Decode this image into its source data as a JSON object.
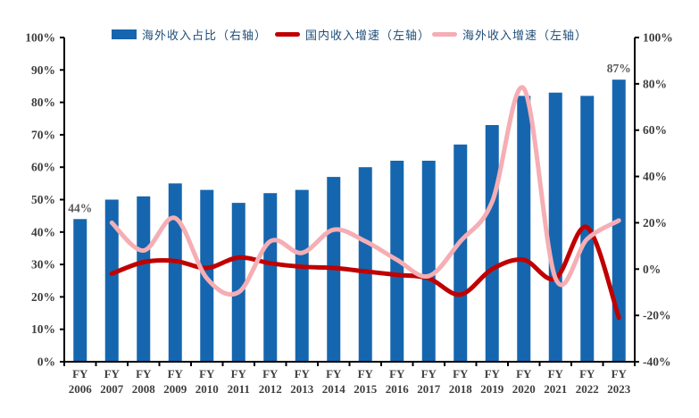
{
  "chart_data": {
    "type": "combo",
    "title": "",
    "category_prefix": "FY",
    "categories": [
      "2006",
      "2007",
      "2008",
      "2009",
      "2010",
      "2011",
      "2012",
      "2013",
      "2014",
      "2015",
      "2016",
      "2017",
      "2018",
      "2019",
      "2020",
      "2021",
      "2022",
      "2023"
    ],
    "series": [
      {
        "name": "海外收入占比（右轴）",
        "type": "bar",
        "color": "#1566AF",
        "axis": "percent_0_100",
        "values": [
          44,
          50,
          51,
          55,
          53,
          49,
          52,
          53,
          57,
          60,
          62,
          62,
          67,
          73,
          82,
          83,
          82,
          87
        ]
      },
      {
        "name": "国内收入增速（左轴）",
        "type": "line",
        "color": "#C00000",
        "axis": "percent_-40_100",
        "values": [
          null,
          -2,
          3,
          3.5,
          0.5,
          5,
          2.5,
          1,
          0.5,
          -1,
          -2.5,
          -4,
          -11,
          0,
          4,
          -4,
          18,
          -21
        ]
      },
      {
        "name": "海外收入增速（左轴）",
        "type": "line",
        "color": "#F5AEB4",
        "axis": "percent_-40_100",
        "values": [
          null,
          20,
          8,
          22,
          -4,
          -10,
          12,
          7,
          17,
          12,
          4,
          -3,
          12,
          29,
          78,
          -4,
          13,
          21
        ]
      }
    ],
    "left_axis": {
      "min": 0,
      "max": 100,
      "step": 10,
      "suffix": "%",
      "tick_labels": [
        "100%",
        "90%",
        "80%",
        "70%",
        "60%",
        "50%",
        "40%",
        "30%",
        "20%",
        "10%",
        "0%"
      ]
    },
    "right_axis": {
      "min": -40,
      "max": 100,
      "step": 20,
      "suffix": "%",
      "tick_labels": [
        "100%",
        "80%",
        "60%",
        "40%",
        "20%",
        "0%",
        "-20%",
        "-40%"
      ]
    },
    "annotations": [
      {
        "category_index": 0,
        "text": "44%"
      },
      {
        "category_index": 17,
        "text": "87%"
      }
    ],
    "legend_position": "top",
    "grid": false,
    "smoothed_lines": true
  },
  "legend": {
    "items": [
      {
        "label": "海外收入占比（右轴）",
        "swatch": "bar",
        "color": "#1566AF"
      },
      {
        "label": "国内收入增速（左轴）",
        "swatch": "line",
        "color": "#C00000"
      },
      {
        "label": "海外收入增速（左轴）",
        "swatch": "line",
        "color": "#F5AEB4"
      }
    ]
  },
  "colors": {
    "axis_line": "#000000",
    "tick_label": "#3D3D3D",
    "category_label": "#404040",
    "annotation": "#595959",
    "legend_text": "#1F4E79",
    "background": "#FFFFFF"
  }
}
